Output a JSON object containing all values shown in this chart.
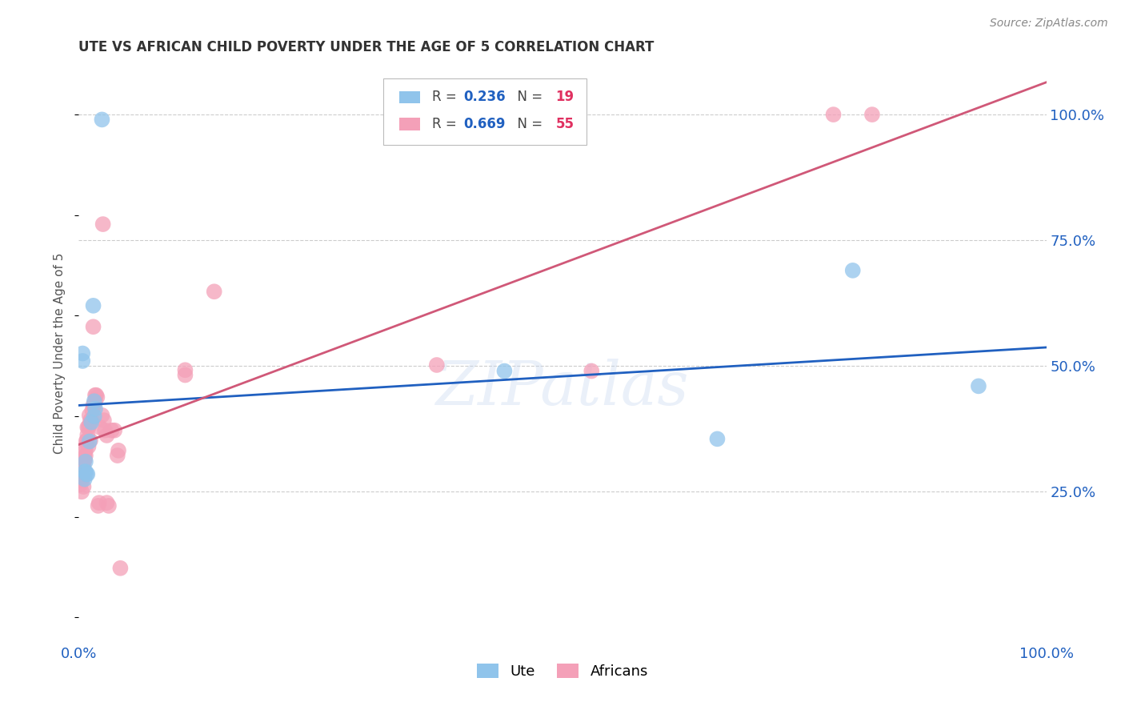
{
  "title": "UTE VS AFRICAN CHILD POVERTY UNDER THE AGE OF 5 CORRELATION CHART",
  "source": "Source: ZipAtlas.com",
  "ylabel": "Child Poverty Under the Age of 5",
  "ytick_labels": [
    "25.0%",
    "50.0%",
    "75.0%",
    "100.0%"
  ],
  "ytick_values": [
    0.25,
    0.5,
    0.75,
    1.0
  ],
  "ute_color": "#90c4eb",
  "africans_color": "#f4a0b8",
  "ute_line_color": "#2060c0",
  "africans_line_color": "#d05878",
  "background_color": "#ffffff",
  "grid_color": "#cccccc",
  "watermark": "ZIPatlas",
  "ute_r": "0.236",
  "ute_n": "19",
  "afr_r": "0.669",
  "afr_n": "55",
  "ute_points": [
    [
      0.004,
      0.525
    ],
    [
      0.004,
      0.51
    ],
    [
      0.006,
      0.29
    ],
    [
      0.006,
      0.275
    ],
    [
      0.007,
      0.29
    ],
    [
      0.007,
      0.31
    ],
    [
      0.008,
      0.285
    ],
    [
      0.009,
      0.285
    ],
    [
      0.011,
      0.35
    ],
    [
      0.013,
      0.388
    ],
    [
      0.015,
      0.62
    ],
    [
      0.016,
      0.43
    ],
    [
      0.016,
      0.4
    ],
    [
      0.017,
      0.415
    ],
    [
      0.024,
      0.99
    ],
    [
      0.44,
      0.49
    ],
    [
      0.66,
      0.355
    ],
    [
      0.8,
      0.69
    ],
    [
      0.93,
      0.46
    ]
  ],
  "africans_points": [
    [
      0.002,
      0.28
    ],
    [
      0.002,
      0.265
    ],
    [
      0.003,
      0.25
    ],
    [
      0.003,
      0.272
    ],
    [
      0.004,
      0.297
    ],
    [
      0.004,
      0.28
    ],
    [
      0.005,
      0.26
    ],
    [
      0.005,
      0.302
    ],
    [
      0.006,
      0.313
    ],
    [
      0.006,
      0.32
    ],
    [
      0.006,
      0.315
    ],
    [
      0.007,
      0.332
    ],
    [
      0.007,
      0.34
    ],
    [
      0.007,
      0.322
    ],
    [
      0.008,
      0.352
    ],
    [
      0.008,
      0.35
    ],
    [
      0.009,
      0.378
    ],
    [
      0.009,
      0.363
    ],
    [
      0.01,
      0.378
    ],
    [
      0.01,
      0.34
    ],
    [
      0.011,
      0.382
    ],
    [
      0.011,
      0.402
    ],
    [
      0.012,
      0.352
    ],
    [
      0.012,
      0.392
    ],
    [
      0.013,
      0.392
    ],
    [
      0.014,
      0.412
    ],
    [
      0.015,
      0.578
    ],
    [
      0.015,
      0.422
    ],
    [
      0.016,
      0.422
    ],
    [
      0.017,
      0.442
    ],
    [
      0.017,
      0.432
    ],
    [
      0.018,
      0.442
    ],
    [
      0.019,
      0.438
    ],
    [
      0.02,
      0.222
    ],
    [
      0.021,
      0.228
    ],
    [
      0.022,
      0.378
    ],
    [
      0.024,
      0.402
    ],
    [
      0.025,
      0.782
    ],
    [
      0.026,
      0.392
    ],
    [
      0.027,
      0.372
    ],
    [
      0.029,
      0.362
    ],
    [
      0.029,
      0.228
    ],
    [
      0.031,
      0.222
    ],
    [
      0.034,
      0.372
    ],
    [
      0.037,
      0.372
    ],
    [
      0.04,
      0.322
    ],
    [
      0.041,
      0.332
    ],
    [
      0.043,
      0.098
    ],
    [
      0.11,
      0.492
    ],
    [
      0.11,
      0.482
    ],
    [
      0.14,
      0.648
    ],
    [
      0.37,
      0.502
    ],
    [
      0.53,
      0.49
    ],
    [
      0.78,
      1.0
    ],
    [
      0.82,
      1.0
    ]
  ],
  "xlim": [
    0.0,
    1.0
  ],
  "ylim": [
    -0.05,
    1.1
  ],
  "title_fontsize": 12,
  "axis_label_fontsize": 13,
  "tick_fontsize": 13
}
